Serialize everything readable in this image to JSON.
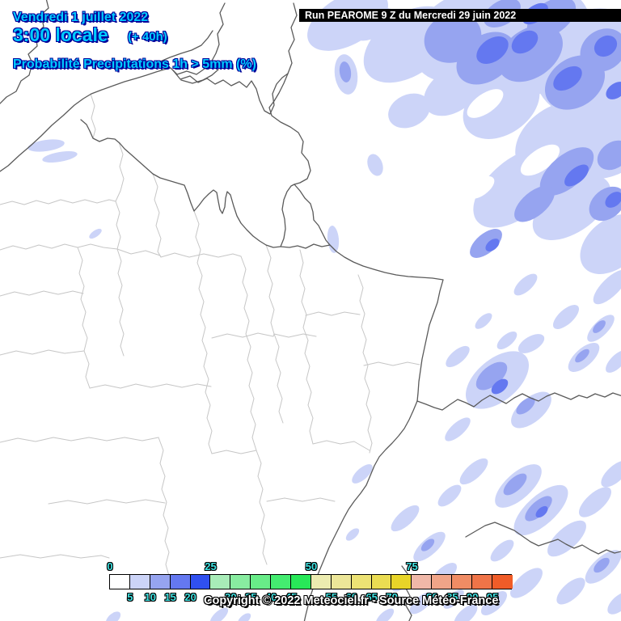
{
  "header": {
    "date_line": "Vendredi 1 juillet 2022",
    "time_line": "3:00 locale",
    "offset": "(+ 40h)",
    "variable_line": "Probabilité Precipitations 1h > 5mm (%)",
    "run_line": "Run PEAROME 9 Z du Mercredi 29 juin 2022"
  },
  "footer": {
    "copyright": "Copyright © 2022 Meteociel.fr - Source Météo-France"
  },
  "colors": {
    "title_text": "#00CCFF",
    "title_outline": "#000099",
    "tick_text": "#3FE3E3",
    "country_border": "#5a5a5a",
    "department_border": "#c6c6c6",
    "sea_and_land": "#FFFFFF",
    "precip_levels": {
      "w": "#FFFFFF",
      "l": "#CCD4F8",
      "m": "#96A4F0",
      "d": "#6478F0",
      "g": "#A0ECB4"
    }
  },
  "legend": {
    "unit": "%",
    "scale_values": [
      0,
      5,
      10,
      15,
      20,
      25,
      30,
      35,
      40,
      45,
      50,
      55,
      60,
      65,
      70,
      75,
      80,
      85,
      90,
      95
    ],
    "cells": [
      "#FFFFFF",
      "#CCD4F8",
      "#96A4F0",
      "#6478F0",
      "#3050F0",
      "#A8ECB8",
      "#88ECA0",
      "#68EC88",
      "#44EC70",
      "#28E858",
      "#ECECB0",
      "#ECE698",
      "#ECE274",
      "#EADC52",
      "#E8D428",
      "#F0B8A8",
      "#F0A488",
      "#F08C64",
      "#F07448",
      "#F05C28"
    ],
    "ticks_top": [
      {
        "label": "0",
        "boundary": 0
      },
      {
        "label": "25",
        "boundary": 5
      },
      {
        "label": "50",
        "boundary": 10
      },
      {
        "label": "75",
        "boundary": 15
      }
    ],
    "ticks_bottom": [
      {
        "label": "5",
        "boundary": 1
      },
      {
        "label": "10",
        "boundary": 2
      },
      {
        "label": "15",
        "boundary": 3
      },
      {
        "label": "20",
        "boundary": 4
      },
      {
        "label": "30",
        "boundary": 6
      },
      {
        "label": "35",
        "boundary": 7
      },
      {
        "label": "40",
        "boundary": 8
      },
      {
        "label": "45",
        "boundary": 9
      },
      {
        "label": "55",
        "boundary": 11
      },
      {
        "label": "60",
        "boundary": 12
      },
      {
        "label": "65",
        "boundary": 13
      },
      {
        "label": "70",
        "boundary": 14
      },
      {
        "label": "80",
        "boundary": 16
      },
      {
        "label": "85",
        "boundary": 17
      },
      {
        "label": "90",
        "boundary": 18
      },
      {
        "label": "95",
        "boundary": 19
      }
    ]
  },
  "map": {
    "precip": [
      [
        "l",
        430,
        25,
        55,
        30,
        -30
      ],
      [
        "l",
        505,
        55,
        62,
        38,
        -35
      ],
      [
        "l",
        575,
        45,
        70,
        52,
        -30
      ],
      [
        "l",
        650,
        55,
        88,
        62,
        -35
      ],
      [
        "l",
        733,
        78,
        75,
        65,
        -30
      ],
      [
        "l",
        748,
        162,
        68,
        55,
        -35
      ],
      [
        "l",
        690,
        172,
        58,
        40,
        -35
      ],
      [
        "l",
        640,
        232,
        65,
        35,
        -40
      ],
      [
        "l",
        707,
        257,
        55,
        30,
        -35
      ],
      [
        "l",
        757,
        302,
        45,
        30,
        -40
      ],
      [
        "l",
        620,
        130,
        52,
        36,
        -35
      ],
      [
        "l",
        560,
        112,
        40,
        26,
        -35
      ],
      [
        "l",
        462,
        30,
        30,
        16,
        -30
      ],
      [
        "l",
        428,
        92,
        14,
        25,
        -8
      ],
      [
        "l",
        461,
        79,
        10,
        14,
        -15
      ],
      [
        "l",
        506,
        137,
        27,
        20,
        -25
      ],
      [
        "l",
        464,
        204,
        9,
        14,
        -20
      ],
      [
        "l",
        412,
        296,
        7,
        17,
        -5
      ],
      [
        "l",
        403,
        34,
        7,
        5,
        -20
      ],
      [
        "l",
        57,
        180,
        23,
        7,
        -8
      ],
      [
        "l",
        74,
        194,
        22,
        6,
        -10
      ],
      [
        "l",
        118,
        289,
        9,
        4,
        -35
      ],
      [
        "l",
        755,
        355,
        28,
        11,
        -45
      ],
      [
        "l",
        743,
        406,
        22,
        9,
        -45
      ],
      [
        "l",
        763,
        447,
        18,
        8,
        -45
      ],
      [
        "l",
        650,
        352,
        18,
        8,
        -42
      ],
      [
        "l",
        700,
        392,
        20,
        9,
        -42
      ],
      [
        "l",
        722,
        442,
        24,
        11,
        -42
      ],
      [
        "l",
        657,
        425,
        18,
        9,
        -30
      ],
      [
        "l",
        598,
        397,
        13,
        6,
        -42
      ],
      [
        "w",
        600,
        128,
        26,
        12,
        -35
      ],
      [
        "w",
        668,
        198,
        28,
        13,
        -35
      ],
      [
        "w",
        594,
        232,
        20,
        10,
        -35
      ],
      [
        "l",
        615,
        470,
        46,
        26,
        -40
      ],
      [
        "l",
        657,
        507,
        30,
        15,
        -40
      ],
      [
        "l",
        566,
        441,
        18,
        8,
        -40
      ],
      [
        "l",
        627,
        421,
        15,
        7,
        -40
      ],
      [
        "l",
        566,
        531,
        20,
        8,
        -42
      ],
      [
        "l",
        586,
        583,
        22,
        9,
        -42
      ],
      [
        "l",
        556,
        613,
        18,
        8,
        -42
      ],
      [
        "l",
        641,
        601,
        36,
        16,
        -42
      ],
      [
        "l",
        669,
        631,
        42,
        18,
        -42
      ],
      [
        "l",
        701,
        666,
        30,
        13,
        -42
      ],
      [
        "l",
        736,
        621,
        25,
        11,
        -42
      ],
      [
        "l",
        761,
        586,
        22,
        10,
        -42
      ],
      [
        "l",
        746,
        701,
        28,
        12,
        -42
      ],
      [
        "l",
        706,
        731,
        22,
        10,
        -42
      ],
      [
        "l",
        766,
        746,
        18,
        9,
        -42
      ],
      [
        "l",
        621,
        681,
        18,
        8,
        -42
      ],
      [
        "l",
        651,
        721,
        25,
        11,
        -42
      ],
      [
        "l",
        611,
        746,
        20,
        9,
        -42
      ],
      [
        "l",
        576,
        761,
        18,
        8,
        -42
      ],
      [
        "l",
        448,
        586,
        16,
        7,
        -42
      ],
      [
        "l",
        501,
        641,
        22,
        9,
        -42
      ],
      [
        "l",
        531,
        676,
        25,
        10,
        -42
      ],
      [
        "l",
        549,
        711,
        20,
        9,
        -42
      ],
      [
        "l",
        521,
        746,
        18,
        8,
        -42
      ],
      [
        "l",
        496,
        721,
        14,
        7,
        -42
      ],
      [
        "l",
        561,
        741,
        16,
        7,
        -42
      ],
      [
        "l",
        436,
        661,
        10,
        5,
        -42
      ],
      [
        "l",
        476,
        763,
        14,
        6,
        -42
      ],
      [
        "l",
        140,
        765,
        11,
        6,
        -42
      ],
      [
        "l",
        271,
        762,
        14,
        6,
        -42
      ],
      [
        "l",
        302,
        766,
        10,
        5,
        -42
      ],
      [
        "g",
        553,
        32,
        13,
        15,
        -10
      ],
      [
        "g",
        573,
        44,
        17,
        19,
        -20
      ],
      [
        "m",
        560,
        47,
        36,
        30,
        -20
      ],
      [
        "m",
        601,
        72,
        40,
        28,
        -35
      ],
      [
        "m",
        656,
        66,
        44,
        30,
        -35
      ],
      [
        "m",
        711,
        102,
        40,
        30,
        -35
      ],
      [
        "m",
        746,
        62,
        30,
        25,
        -35
      ],
      [
        "m",
        682,
        22,
        34,
        20,
        -35
      ],
      [
        "m",
        621,
        16,
        25,
        15,
        -30
      ],
      [
        "m",
        701,
        212,
        40,
        20,
        -40
      ],
      [
        "m",
        661,
        252,
        30,
        15,
        -40
      ],
      [
        "m",
        751,
        252,
        25,
        18,
        -40
      ],
      [
        "m",
        601,
        301,
        24,
        12,
        -40
      ],
      [
        "m",
        759,
        192,
        22,
        16,
        -35
      ],
      [
        "m",
        427,
        89,
        7,
        13,
        -8
      ],
      [
        "m",
        608,
        465,
        23,
        12,
        -40
      ],
      [
        "m",
        637,
        599,
        18,
        8,
        -42
      ],
      [
        "m",
        666,
        629,
        21,
        9,
        -42
      ],
      [
        "m",
        744,
        699,
        12,
        6,
        -42
      ],
      [
        "m",
        741,
        404,
        10,
        5,
        -45
      ],
      [
        "m",
        720,
        440,
        11,
        5,
        -42
      ],
      [
        "m",
        529,
        674,
        10,
        5,
        -42
      ],
      [
        "m",
        650,
        502,
        14,
        7,
        -40
      ],
      [
        "d",
        609,
        62,
        22,
        14,
        -35
      ],
      [
        "d",
        649,
        52,
        18,
        12,
        -35
      ],
      [
        "d",
        702,
        97,
        20,
        12,
        -35
      ],
      [
        "d",
        749,
        57,
        15,
        12,
        -35
      ],
      [
        "d",
        662,
        17,
        18,
        10,
        -35
      ],
      [
        "d",
        713,
        217,
        18,
        9,
        -40
      ],
      [
        "d",
        759,
        247,
        12,
        8,
        -40
      ],
      [
        "d",
        609,
        303,
        10,
        6,
        -40
      ],
      [
        "d",
        762,
        112,
        14,
        9,
        -35
      ],
      [
        "d",
        618,
        478,
        12,
        7,
        -40
      ],
      [
        "d",
        670,
        633,
        9,
        5,
        -42
      ]
    ]
  }
}
